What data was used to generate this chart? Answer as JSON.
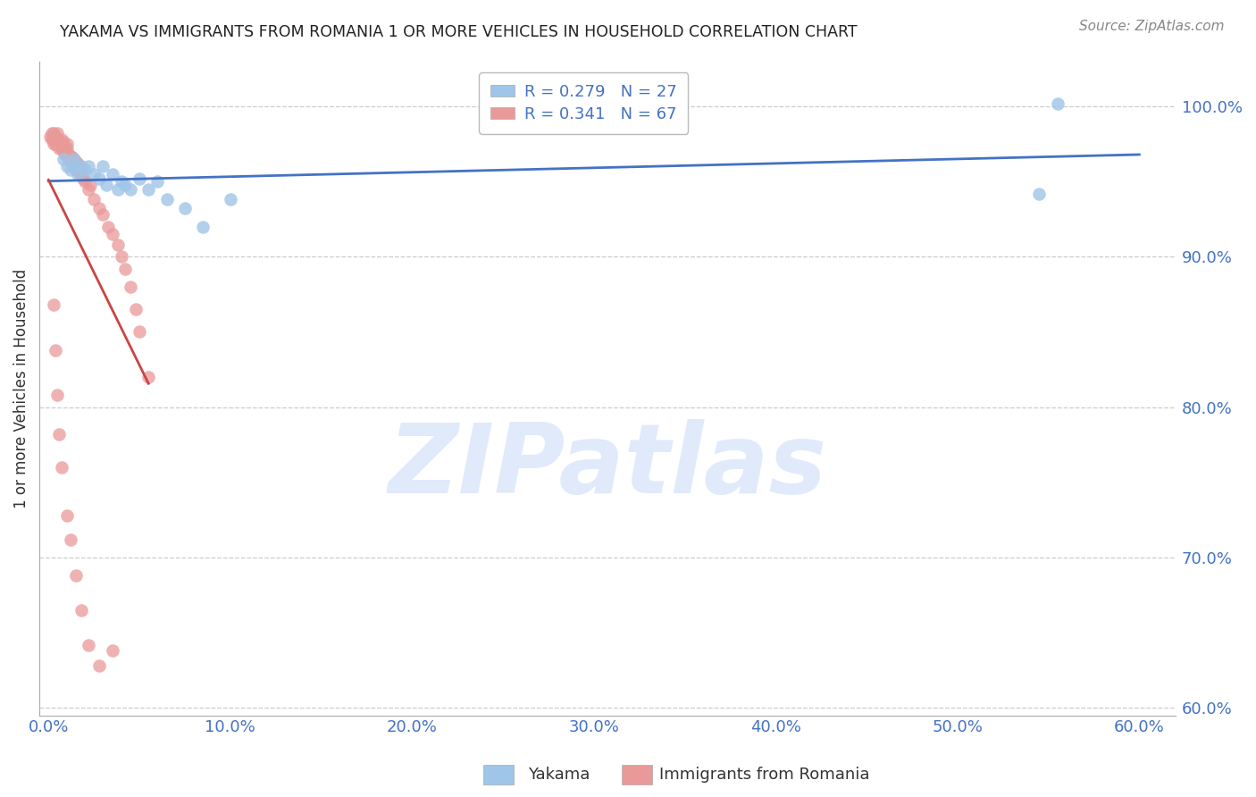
{
  "title": "YAKAMA VS IMMIGRANTS FROM ROMANIA 1 OR MORE VEHICLES IN HOUSEHOLD CORRELATION CHART",
  "source": "Source: ZipAtlas.com",
  "ylabel": "1 or more Vehicles in Household",
  "xlim": [
    -0.005,
    0.62
  ],
  "ylim": [
    0.595,
    1.03
  ],
  "yticks": [
    0.6,
    0.7,
    0.8,
    0.9,
    1.0
  ],
  "ytick_labels": [
    "60.0%",
    "70.0%",
    "80.0%",
    "90.0%",
    "100.0%"
  ],
  "xticks": [
    0.0,
    0.1,
    0.2,
    0.3,
    0.4,
    0.5,
    0.6
  ],
  "xtick_labels": [
    "0.0%",
    "10.0%",
    "20.0%",
    "30.0%",
    "40.0%",
    "50.0%",
    "60.0%"
  ],
  "yakama_x": [
    0.008,
    0.01,
    0.012,
    0.014,
    0.015,
    0.016,
    0.018,
    0.02,
    0.022,
    0.025,
    0.028,
    0.03,
    0.032,
    0.035,
    0.038,
    0.04,
    0.042,
    0.045,
    0.05,
    0.055,
    0.06,
    0.065,
    0.075,
    0.085,
    0.1,
    0.545,
    0.555
  ],
  "yakama_y": [
    0.965,
    0.96,
    0.958,
    0.965,
    0.96,
    0.955,
    0.96,
    0.958,
    0.96,
    0.955,
    0.952,
    0.96,
    0.948,
    0.955,
    0.945,
    0.95,
    0.948,
    0.945,
    0.952,
    0.945,
    0.95,
    0.938,
    0.932,
    0.92,
    0.938,
    0.942,
    1.002
  ],
  "romania_x": [
    0.001,
    0.002,
    0.002,
    0.003,
    0.003,
    0.003,
    0.004,
    0.004,
    0.004,
    0.005,
    0.005,
    0.005,
    0.006,
    0.006,
    0.007,
    0.007,
    0.007,
    0.008,
    0.008,
    0.008,
    0.009,
    0.009,
    0.01,
    0.01,
    0.01,
    0.011,
    0.011,
    0.012,
    0.012,
    0.013,
    0.013,
    0.014,
    0.015,
    0.015,
    0.016,
    0.016,
    0.017,
    0.018,
    0.019,
    0.02,
    0.022,
    0.023,
    0.025,
    0.028,
    0.03,
    0.033,
    0.035,
    0.038,
    0.04,
    0.042,
    0.045,
    0.048,
    0.05,
    0.055,
    0.003,
    0.004,
    0.005,
    0.006,
    0.007,
    0.01,
    0.012,
    0.015,
    0.018,
    0.022,
    0.028,
    0.035
  ],
  "romania_y": [
    0.98,
    0.978,
    0.982,
    0.975,
    0.978,
    0.982,
    0.975,
    0.978,
    0.98,
    0.975,
    0.978,
    0.982,
    0.972,
    0.975,
    0.972,
    0.975,
    0.978,
    0.97,
    0.973,
    0.976,
    0.968,
    0.972,
    0.968,
    0.972,
    0.975,
    0.965,
    0.968,
    0.963,
    0.967,
    0.962,
    0.966,
    0.96,
    0.958,
    0.963,
    0.957,
    0.962,
    0.956,
    0.958,
    0.952,
    0.95,
    0.945,
    0.948,
    0.938,
    0.932,
    0.928,
    0.92,
    0.915,
    0.908,
    0.9,
    0.892,
    0.88,
    0.865,
    0.85,
    0.82,
    0.868,
    0.838,
    0.808,
    0.782,
    0.76,
    0.728,
    0.712,
    0.688,
    0.665,
    0.642,
    0.628,
    0.638
  ],
  "yakama_color": "#9fc5e8",
  "romania_color": "#ea9999",
  "yakama_line_color": "#4472c4",
  "romania_line_color": "#cc4444",
  "tick_color": "#4472c4",
  "background_color": "#ffffff",
  "grid_color": "#cccccc",
  "watermark_color": "#c9daf8",
  "source_color": "#888888",
  "title_color": "#222222"
}
